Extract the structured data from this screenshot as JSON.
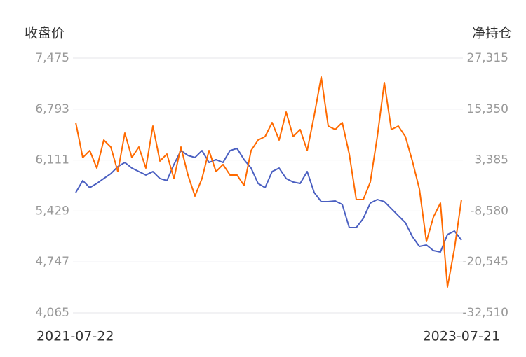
{
  "chart_data": {
    "type": "line",
    "ylabel": "收盘价",
    "y2label": "净持仓",
    "categories": [
      "2021-07-22",
      null,
      null,
      null,
      null,
      null,
      null,
      null,
      null,
      null,
      null,
      null,
      null,
      null,
      null,
      null,
      null,
      null,
      null,
      null,
      null,
      null,
      null,
      null,
      null,
      null,
      null,
      null,
      null,
      null,
      null,
      null,
      null,
      null,
      null,
      null,
      null,
      null,
      null,
      null,
      null,
      null,
      null,
      null,
      null,
      null,
      null,
      null,
      null,
      null,
      null,
      null,
      null,
      null,
      null,
      "2023-07-21"
    ],
    "series": [
      {
        "color": "#4a5fc1",
        "values": [
          5676,
          5836,
          5742,
          5798,
          5864,
          5929,
          6023,
          6079,
          6004,
          5957,
          5911,
          5957,
          5864,
          5836,
          6051,
          6238,
          6173,
          6145,
          6238,
          6079,
          6117,
          6079,
          6238,
          6267,
          6117,
          6004,
          5798,
          5742,
          5957,
          6004,
          5864,
          5817,
          5798,
          5957,
          5676,
          5555,
          5555,
          5564,
          5517,
          5208,
          5208,
          5330,
          5536,
          5583,
          5555,
          5461,
          5367,
          5274,
          5086,
          4955,
          4974,
          4899,
          4880,
          5114,
          5161,
          5039
        ]
      },
      {
        "color": "#ff6a00",
        "axis": "y2",
        "values": [
          12195,
          3977,
          5621,
          1512,
          8086,
          6443,
          690,
          9730,
          3977,
          6443,
          1512,
          11373,
          3156,
          4799,
          -953,
          6443,
          -131,
          -5062,
          -953,
          5621,
          690,
          2334,
          -131,
          -131,
          -2597,
          5621,
          8086,
          8908,
          12195,
          8086,
          14660,
          8908,
          10551,
          5621,
          13838,
          22878,
          11373,
          10551,
          12195,
          4799,
          -5884,
          -5884,
          -1775,
          8908,
          21563,
          10551,
          11373,
          8908,
          3156,
          -3418,
          -15745,
          -9992,
          -6705,
          -26427,
          -17388,
          -5884
        ]
      }
    ],
    "ylim": [
      4065,
      7475
    ],
    "yticks": [
      {
        "value": 7475,
        "label": "7,475"
      },
      {
        "value": 6793,
        "label": "6,793"
      },
      {
        "value": 6111,
        "label": "6,111"
      },
      {
        "value": 5429,
        "label": "5,429"
      },
      {
        "value": 4747,
        "label": "4,747"
      },
      {
        "value": 4065,
        "label": "4,065"
      }
    ],
    "y2lim": [
      -32510,
      27315
    ],
    "y2ticks": [
      {
        "value": 27315,
        "label": "27,315"
      },
      {
        "value": 15350,
        "label": "15,350"
      },
      {
        "value": 3385,
        "label": "3,385"
      },
      {
        "value": -8580,
        "label": "-8,580"
      },
      {
        "value": -20545,
        "label": "-20,545"
      },
      {
        "value": -32510,
        "label": "-32,510"
      }
    ],
    "grid": true
  }
}
